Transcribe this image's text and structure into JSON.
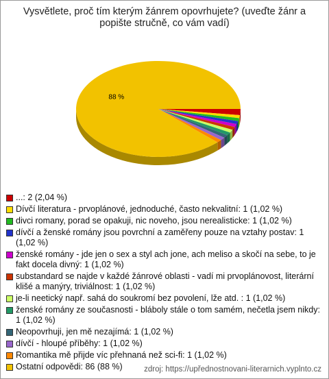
{
  "chart_data": {
    "type": "pie",
    "title": "Vysvětlete, proč tím kterým žánrem opovrhujete? (uveďte žánr a popište stručně, co vám vadí)",
    "categories": [
      "...: 2 (2,04 %)",
      "Dívčí literatura - prvoplánové, jednoduché, často nekvalitní: 1 (1,02 %)",
      "divci romany, porad se opakuji, nic noveho, jsou nerealisticke: 1 (1,02 %)",
      "dívčí a ženské romány jsou povrchní a zaměřeny pouze na vztahy postav: 1 (1,02 %)",
      "ženské romány - jde jen o sex a styl ach jone, ach meliso a skočí na sebe, to je fakt docela divný: 1 (1,02 %)",
      "substandard se najde v každé žánrové oblasti - vadí mi prvoplánovost, literární klišé a manýry, triviálnost: 1 (1,02 %)",
      "je-li neetický např. sahá do soukromí bez povolení, lže atd. : 1 (1,02 %)",
      "ženské romány ze současnosti - bláboly stále o tom samém, nečetla jsem nikdy: 1 (1,02 %)",
      "Neopovrhuji, jen mě nezajímá: 1 (1,02 %)",
      "dívčí - hloupé příběhy: 1 (1,02 %)",
      "Romantika mě přijde víc přehnaná než sci-fi: 1 (1,02 %)",
      "Ostatní odpovědi: 86 (88 %)"
    ],
    "values": [
      2.04,
      1.02,
      1.02,
      1.02,
      1.02,
      1.02,
      1.02,
      1.02,
      1.02,
      1.02,
      1.02,
      87.76
    ],
    "value_labels": [
      null,
      null,
      null,
      null,
      null,
      null,
      null,
      null,
      null,
      null,
      null,
      "88 %"
    ],
    "colors": [
      "#cc0000",
      "#ffdd00",
      "#22bb22",
      "#2233cc",
      "#cc00cc",
      "#cc3300",
      "#ccff66",
      "#229966",
      "#336677",
      "#9966cc",
      "#ff8800",
      "#f2c200"
    ],
    "source": "zdroj: https://upřednostnovani-literarnich.vyplnto.cz"
  }
}
